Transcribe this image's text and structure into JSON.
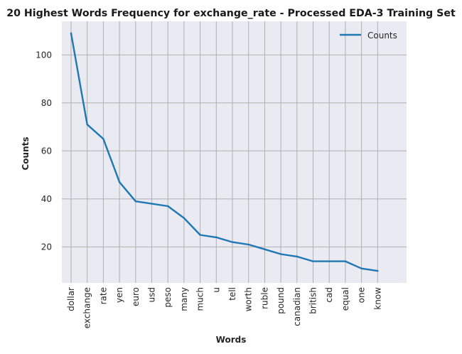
{
  "chart_data": {
    "type": "line",
    "title": "20 Highest Words Frequency for exchange_rate - Processed EDA-3 Training Set",
    "xlabel": "Words",
    "ylabel": "Counts",
    "categories": [
      "dollar",
      "exchange",
      "rate",
      "yen",
      "euro",
      "usd",
      "peso",
      "many",
      "much",
      "u",
      "tell",
      "worth",
      "ruble",
      "pound",
      "canadian",
      "british",
      "cad",
      "equal",
      "one",
      "know"
    ],
    "series": [
      {
        "name": "Counts",
        "values": [
          109,
          71,
          65,
          47,
          39,
          38,
          37,
          32,
          25,
          24,
          22,
          21,
          19,
          17,
          16,
          14,
          14,
          14,
          11,
          10
        ]
      }
    ],
    "ylim": [
      5,
      114
    ],
    "yticks": [
      20,
      40,
      60,
      80,
      100
    ],
    "grid": true,
    "legend_position": "upper right",
    "colors": {
      "line": "#1f77b4",
      "plot_bg": "#eaeaf2",
      "grid": "#b0b0b0"
    }
  }
}
